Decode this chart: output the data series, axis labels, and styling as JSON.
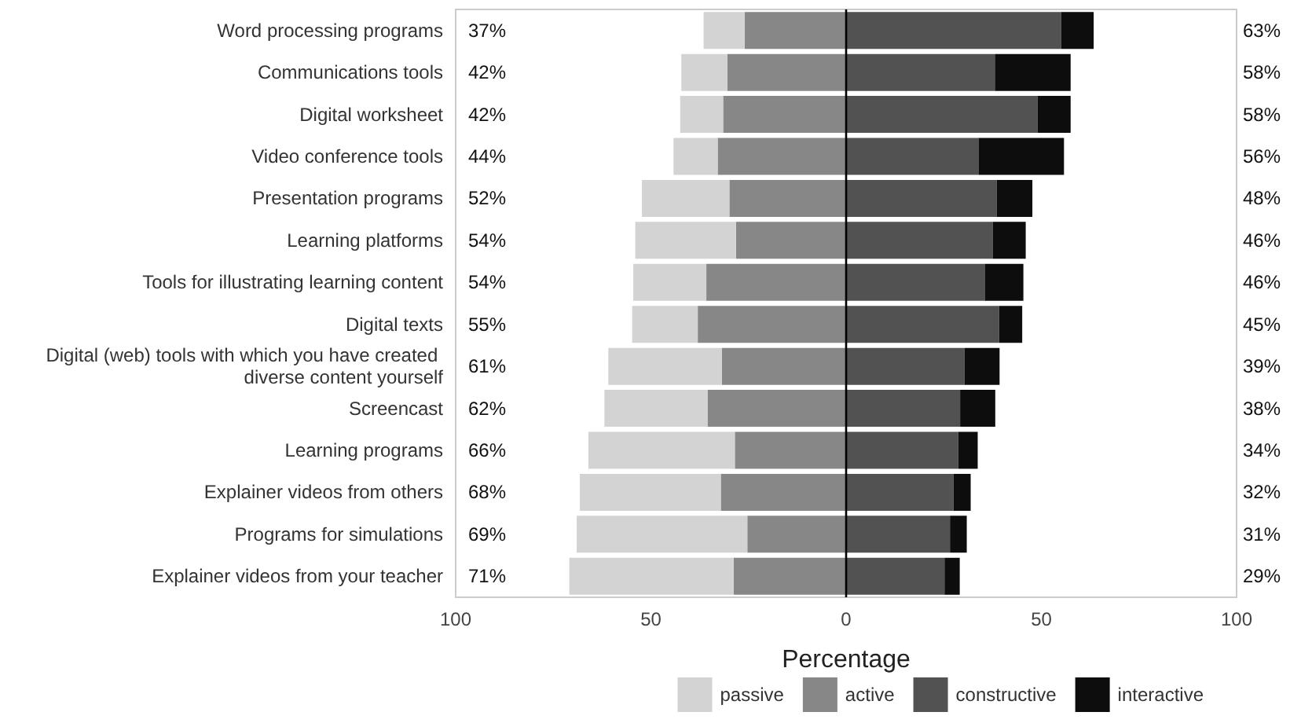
{
  "chart_data": {
    "type": "bar",
    "orientation": "horizontal",
    "stacked": true,
    "xlabel": "Percentage",
    "categories": [
      "Word processing programs",
      "Communications tools",
      "Digital worksheet",
      "Video conference tools",
      "Presentation programs",
      "Learning platforms",
      "Tools for illustrating learning content",
      "Digital texts",
      "Digital (web) tools with which you have created diverse content yourself",
      "Screencast",
      "Learning programs",
      "Explainer videos from others",
      "Programs for simulations",
      "Explainer videos from your teacher"
    ],
    "series": [
      {
        "name": "passive",
        "color": "#d3d3d3",
        "values": [
          -10.5,
          -11.8,
          -11,
          -11.3,
          -22.4,
          -25.8,
          -18.7,
          -16.8,
          -29.1,
          -26.4,
          -37.5,
          -36.1,
          -43.7,
          -42.1
        ]
      },
      {
        "name": "active",
        "color": "#878787",
        "values": [
          -26,
          -30.4,
          -31.5,
          -32.9,
          -29.9,
          -28.2,
          -35.8,
          -38,
          -31.8,
          -35.5,
          -28.5,
          -32.1,
          -25.3,
          -28.8
        ]
      },
      {
        "name": "constructive",
        "color": "#525252",
        "values": [
          55.1,
          38.1,
          49,
          33.9,
          38.6,
          37.6,
          35.5,
          39.2,
          30.3,
          29.2,
          28.7,
          27.5,
          26.6,
          25.2
        ]
      },
      {
        "name": "interactive",
        "color": "#0d0d0d",
        "values": [
          8.3,
          19.4,
          8.5,
          21.9,
          9.1,
          8.4,
          9.9,
          5.9,
          9,
          9,
          5,
          4.4,
          4.3,
          3.9
        ]
      }
    ],
    "totals": [
      [
        "37%",
        "63%"
      ],
      [
        "42%",
        "58%"
      ],
      [
        "42%",
        "58%"
      ],
      [
        "44%",
        "56%"
      ],
      [
        "52%",
        "48%"
      ],
      [
        "54%",
        "46%"
      ],
      [
        "54%",
        "46%"
      ],
      [
        "55%",
        "45%"
      ],
      [
        "61%",
        "39%"
      ],
      [
        "62%",
        "38%"
      ],
      [
        "66%",
        "34%"
      ],
      [
        "68%",
        "32%"
      ],
      [
        "69%",
        "31%"
      ],
      [
        "71%",
        "29%"
      ]
    ],
    "xlim": [
      -100,
      100
    ],
    "xticks": [
      {
        "value": -100,
        "label": "100"
      },
      {
        "value": -50,
        "label": "50"
      },
      0,
      50,
      {
        "value": 100,
        "label": "100"
      }
    ],
    "ref_lines": [
      {
        "axis": "x",
        "value": 0,
        "color": "#000000"
      }
    ],
    "grid": false,
    "legend": "bottom right"
  }
}
